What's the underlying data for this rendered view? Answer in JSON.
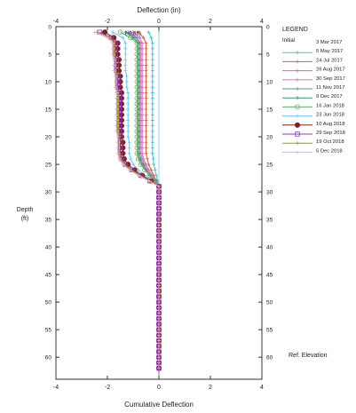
{
  "chart_data": {
    "type": "line",
    "title": "Deflection (in)",
    "xlabel": "Cumulative Deflection",
    "ylabel_lines": [
      "Depth",
      "(ft)"
    ],
    "xlim": [
      -4,
      4
    ],
    "ylim": [
      0,
      64
    ],
    "x_ticks": [
      -4,
      -2,
      0,
      2,
      4
    ],
    "y_ticks": [
      0,
      5,
      10,
      15,
      20,
      25,
      30,
      35,
      40,
      45,
      50,
      55,
      60
    ],
    "grid": false,
    "legend_position": "right",
    "legend_title": "LEGEND",
    "legend_initial_label": "Initial",
    "reference_label": "Ref. Elevation",
    "depths": [
      1,
      2,
      3,
      4,
      5,
      6,
      7,
      8,
      9,
      10,
      11,
      12,
      13,
      14,
      15,
      16,
      17,
      18,
      19,
      20,
      21,
      22,
      23,
      24,
      25,
      26,
      27,
      28,
      29,
      30,
      31,
      32,
      33,
      34,
      35,
      36,
      37,
      38,
      39,
      40,
      41,
      42,
      43,
      44,
      45,
      46,
      47,
      48,
      49,
      50,
      51,
      52,
      53,
      54,
      55,
      56,
      57,
      58,
      59,
      60,
      61,
      62
    ],
    "series": [
      {
        "name": "3 Mar 2017",
        "color": "#99ccff",
        "marker": "none",
        "values": [
          0,
          0,
          0,
          0,
          0,
          0,
          0,
          0,
          0,
          0,
          0,
          0,
          0,
          0,
          0,
          0,
          0,
          0,
          0,
          0,
          0,
          0,
          0,
          0,
          0,
          0,
          0,
          0,
          0,
          0,
          0,
          0,
          0,
          0,
          0,
          0,
          0,
          0,
          0,
          0,
          0,
          0,
          0,
          0,
          0,
          0,
          0,
          0,
          0,
          0,
          0,
          0,
          0,
          0,
          0,
          0,
          0,
          0,
          0,
          0,
          0,
          0
        ]
      },
      {
        "name": "5 May 2017",
        "color": "#33cccc",
        "marker": "plus",
        "values": [
          -0.4,
          -0.3,
          -0.25,
          -0.25,
          -0.25,
          -0.25,
          -0.25,
          -0.25,
          -0.25,
          -0.25,
          -0.25,
          -0.25,
          -0.25,
          -0.25,
          -0.25,
          -0.25,
          -0.25,
          -0.25,
          -0.25,
          -0.25,
          -0.25,
          -0.25,
          -0.25,
          -0.22,
          -0.2,
          -0.15,
          -0.1,
          -0.05,
          0,
          0,
          0,
          0,
          0,
          0,
          0,
          0,
          0,
          0,
          0,
          0,
          0,
          0,
          0,
          0,
          0,
          0,
          0,
          0,
          0,
          0,
          0,
          0,
          0,
          0,
          0,
          0,
          0,
          0,
          0,
          0,
          0,
          0
        ]
      },
      {
        "name": "24 Jul 2017",
        "color": "#e06030",
        "marker": "plus",
        "values": [
          -0.8,
          -0.6,
          -0.5,
          -0.5,
          -0.5,
          -0.5,
          -0.5,
          -0.5,
          -0.5,
          -0.5,
          -0.5,
          -0.5,
          -0.5,
          -0.5,
          -0.5,
          -0.5,
          -0.5,
          -0.5,
          -0.5,
          -0.5,
          -0.5,
          -0.5,
          -0.5,
          -0.45,
          -0.4,
          -0.3,
          -0.2,
          -0.1,
          0,
          0,
          0,
          0,
          0,
          0,
          0,
          0,
          0,
          0,
          0,
          0,
          0,
          0,
          0,
          0,
          0,
          0,
          0,
          0,
          0,
          0,
          0,
          0,
          0,
          0,
          0,
          0,
          0,
          0,
          0,
          0,
          0,
          0
        ]
      },
      {
        "name": "26 Aug 2017",
        "color": "#cc66cc",
        "marker": "plus",
        "values": [
          -1.0,
          -0.75,
          -0.65,
          -0.65,
          -0.65,
          -0.65,
          -0.65,
          -0.65,
          -0.65,
          -0.65,
          -0.65,
          -0.65,
          -0.65,
          -0.65,
          -0.65,
          -0.65,
          -0.65,
          -0.65,
          -0.65,
          -0.65,
          -0.65,
          -0.65,
          -0.65,
          -0.6,
          -0.5,
          -0.4,
          -0.25,
          -0.12,
          0,
          0,
          0,
          0,
          0,
          0,
          0,
          0,
          0,
          0,
          0,
          0,
          0,
          0,
          0,
          0,
          0,
          0,
          0,
          0,
          0,
          0,
          0,
          0,
          0,
          0,
          0,
          0,
          0,
          0,
          0,
          0,
          0,
          0
        ]
      },
      {
        "name": "30 Sep 2017",
        "color": "#ff66cc",
        "marker": "plus",
        "values": [
          -1.1,
          -0.85,
          -0.7,
          -0.7,
          -0.7,
          -0.7,
          -0.7,
          -0.7,
          -0.7,
          -0.7,
          -0.7,
          -0.7,
          -0.7,
          -0.7,
          -0.7,
          -0.7,
          -0.7,
          -0.7,
          -0.7,
          -0.7,
          -0.7,
          -0.7,
          -0.7,
          -0.65,
          -0.55,
          -0.45,
          -0.3,
          -0.15,
          0,
          0,
          0,
          0,
          0,
          0,
          0,
          0,
          0,
          0,
          0,
          0,
          0,
          0,
          0,
          0,
          0,
          0,
          0,
          0,
          0,
          0,
          0,
          0,
          0,
          0,
          0,
          0,
          0,
          0,
          0,
          0,
          0,
          0
        ]
      },
      {
        "name": "11 Nov 2017",
        "color": "#6688aa",
        "marker": "plus",
        "values": [
          -1.2,
          -0.9,
          -0.75,
          -0.75,
          -0.75,
          -0.75,
          -0.75,
          -0.75,
          -0.75,
          -0.75,
          -0.75,
          -0.75,
          -0.75,
          -0.75,
          -0.75,
          -0.75,
          -0.75,
          -0.75,
          -0.75,
          -0.75,
          -0.75,
          -0.75,
          -0.75,
          -0.7,
          -0.6,
          -0.5,
          -0.35,
          -0.15,
          0,
          0,
          0,
          0,
          0,
          0,
          0,
          0,
          0,
          0,
          0,
          0,
          0,
          0,
          0,
          0,
          0,
          0,
          0,
          0,
          0,
          0,
          0,
          0,
          0,
          0,
          0,
          0,
          0,
          0,
          0,
          0,
          0,
          0
        ]
      },
      {
        "name": "9 Dec 2017",
        "color": "#339966",
        "marker": "plus",
        "values": [
          -1.3,
          -1.0,
          -0.8,
          -0.8,
          -0.8,
          -0.8,
          -0.8,
          -0.8,
          -0.8,
          -0.8,
          -0.8,
          -0.8,
          -0.8,
          -0.8,
          -0.8,
          -0.8,
          -0.8,
          -0.8,
          -0.8,
          -0.8,
          -0.8,
          -0.8,
          -0.8,
          -0.75,
          -0.65,
          -0.5,
          -0.35,
          -0.15,
          0,
          0,
          0,
          0,
          0,
          0,
          0,
          0,
          0,
          0,
          0,
          0,
          0,
          0,
          0,
          0,
          0,
          0,
          0,
          0,
          0,
          0,
          0,
          0,
          0,
          0,
          0,
          0,
          0,
          0,
          0,
          0,
          0,
          0
        ]
      },
      {
        "name": "16 Jan 2018",
        "color": "#66aa66",
        "marker": "circle",
        "values": [
          -1.5,
          -1.1,
          -0.85,
          -0.85,
          -0.85,
          -0.85,
          -0.85,
          -0.85,
          -0.85,
          -0.85,
          -0.85,
          -0.85,
          -0.85,
          -0.85,
          -0.85,
          -0.85,
          -0.85,
          -0.85,
          -0.85,
          -0.85,
          -0.85,
          -0.85,
          -0.85,
          -0.8,
          -0.7,
          -0.55,
          -0.35,
          -0.15,
          0,
          0,
          0,
          0,
          0,
          0,
          0,
          0,
          0,
          0,
          0,
          0,
          0,
          0,
          0,
          0,
          0,
          0,
          0,
          0,
          0,
          0,
          0,
          0,
          0,
          0,
          0,
          0,
          0,
          0,
          0,
          0,
          0,
          0
        ]
      },
      {
        "name": "23 Jun 2018",
        "color": "#66ccff",
        "marker": "plus",
        "values": [
          -1.8,
          -1.4,
          -1.3,
          -1.3,
          -1.3,
          -1.3,
          -1.3,
          -1.3,
          -1.25,
          -1.25,
          -1.25,
          -1.2,
          -1.2,
          -1.2,
          -1.2,
          -1.2,
          -1.2,
          -1.2,
          -1.2,
          -1.2,
          -1.15,
          -1.15,
          -1.15,
          -1.1,
          -1.0,
          -0.8,
          -0.55,
          -0.25,
          0,
          0,
          0,
          0,
          0,
          0,
          0,
          0,
          0,
          0,
          0,
          0,
          0,
          0,
          0,
          0,
          0,
          0,
          0,
          0,
          0,
          0,
          0,
          0,
          0,
          0,
          0,
          0,
          0,
          0,
          0,
          0,
          0,
          0
        ]
      },
      {
        "name": "10 Aug 2018",
        "color": "#802020",
        "marker": "dot",
        "values": [
          -2.1,
          -1.75,
          -1.6,
          -1.6,
          -1.6,
          -1.55,
          -1.55,
          -1.55,
          -1.5,
          -1.5,
          -1.5,
          -1.45,
          -1.45,
          -1.45,
          -1.45,
          -1.45,
          -1.45,
          -1.45,
          -1.45,
          -1.45,
          -1.4,
          -1.4,
          -1.4,
          -1.35,
          -1.2,
          -0.95,
          -0.65,
          -0.3,
          0,
          0,
          0,
          0,
          0,
          0,
          0,
          0,
          0,
          0,
          0,
          0,
          0,
          0,
          0,
          0,
          0,
          0,
          0,
          0,
          0,
          0,
          0,
          0,
          0,
          0,
          0,
          0,
          0,
          0,
          0,
          0,
          0,
          0
        ]
      },
      {
        "name": "29 Sep 2018",
        "color": "#9933cc",
        "marker": "square",
        "values": [
          -2.3,
          -1.85,
          -1.7,
          -1.7,
          -1.7,
          -1.65,
          -1.65,
          -1.65,
          -1.6,
          -1.6,
          -1.6,
          -1.55,
          -1.55,
          -1.55,
          -1.55,
          -1.55,
          -1.55,
          -1.55,
          -1.55,
          -1.5,
          -1.5,
          -1.5,
          -1.5,
          -1.45,
          -1.3,
          -1.05,
          -0.7,
          -0.35,
          0,
          0,
          0,
          0,
          0,
          0,
          0,
          0,
          0,
          0,
          0,
          0,
          0,
          0,
          0,
          0,
          0,
          0,
          0,
          0,
          0,
          0,
          0,
          0,
          0,
          0,
          0,
          0,
          0,
          0,
          0,
          0,
          0,
          0
        ]
      },
      {
        "name": "19 Oct 2018",
        "color": "#a0a000",
        "marker": "plus",
        "values": [
          -2.4,
          -1.9,
          -1.75,
          -1.75,
          -1.75,
          -1.7,
          -1.7,
          -1.7,
          -1.65,
          -1.65,
          -1.65,
          -1.6,
          -1.6,
          -1.6,
          -1.6,
          -1.6,
          -1.6,
          -1.6,
          -1.6,
          -1.55,
          -1.55,
          -1.55,
          -1.55,
          -1.5,
          -1.35,
          -1.1,
          -0.75,
          -0.35,
          0,
          0,
          0,
          0,
          0,
          0,
          0,
          0,
          0,
          0,
          0,
          0,
          0,
          0,
          0,
          0,
          0,
          0,
          0,
          0,
          0,
          0,
          0,
          0,
          0,
          0,
          0,
          0,
          0,
          0,
          0,
          0,
          0,
          0
        ]
      },
      {
        "name": "5 Dec 2018",
        "color": "#e0b0e0",
        "marker": "plus",
        "values": [
          -2.5,
          -2.0,
          -1.8,
          -1.8,
          -1.8,
          -1.75,
          -1.75,
          -1.75,
          -1.7,
          -1.7,
          -1.7,
          -1.65,
          -1.65,
          -1.65,
          -1.65,
          -1.65,
          -1.65,
          -1.65,
          -1.65,
          -1.6,
          -1.6,
          -1.6,
          -1.6,
          -1.55,
          -1.4,
          -1.15,
          -0.8,
          -0.4,
          0,
          0,
          0,
          0,
          0,
          0,
          0,
          0,
          0,
          0,
          0,
          0,
          0,
          0,
          0,
          0,
          0,
          0,
          0,
          0,
          0,
          0,
          0,
          0,
          0,
          0,
          0,
          0,
          0,
          0,
          0,
          0,
          0,
          0
        ]
      }
    ],
    "annotation": {
      "label": "(-0.86)",
      "x": -1.0,
      "y": 1.5
    }
  }
}
